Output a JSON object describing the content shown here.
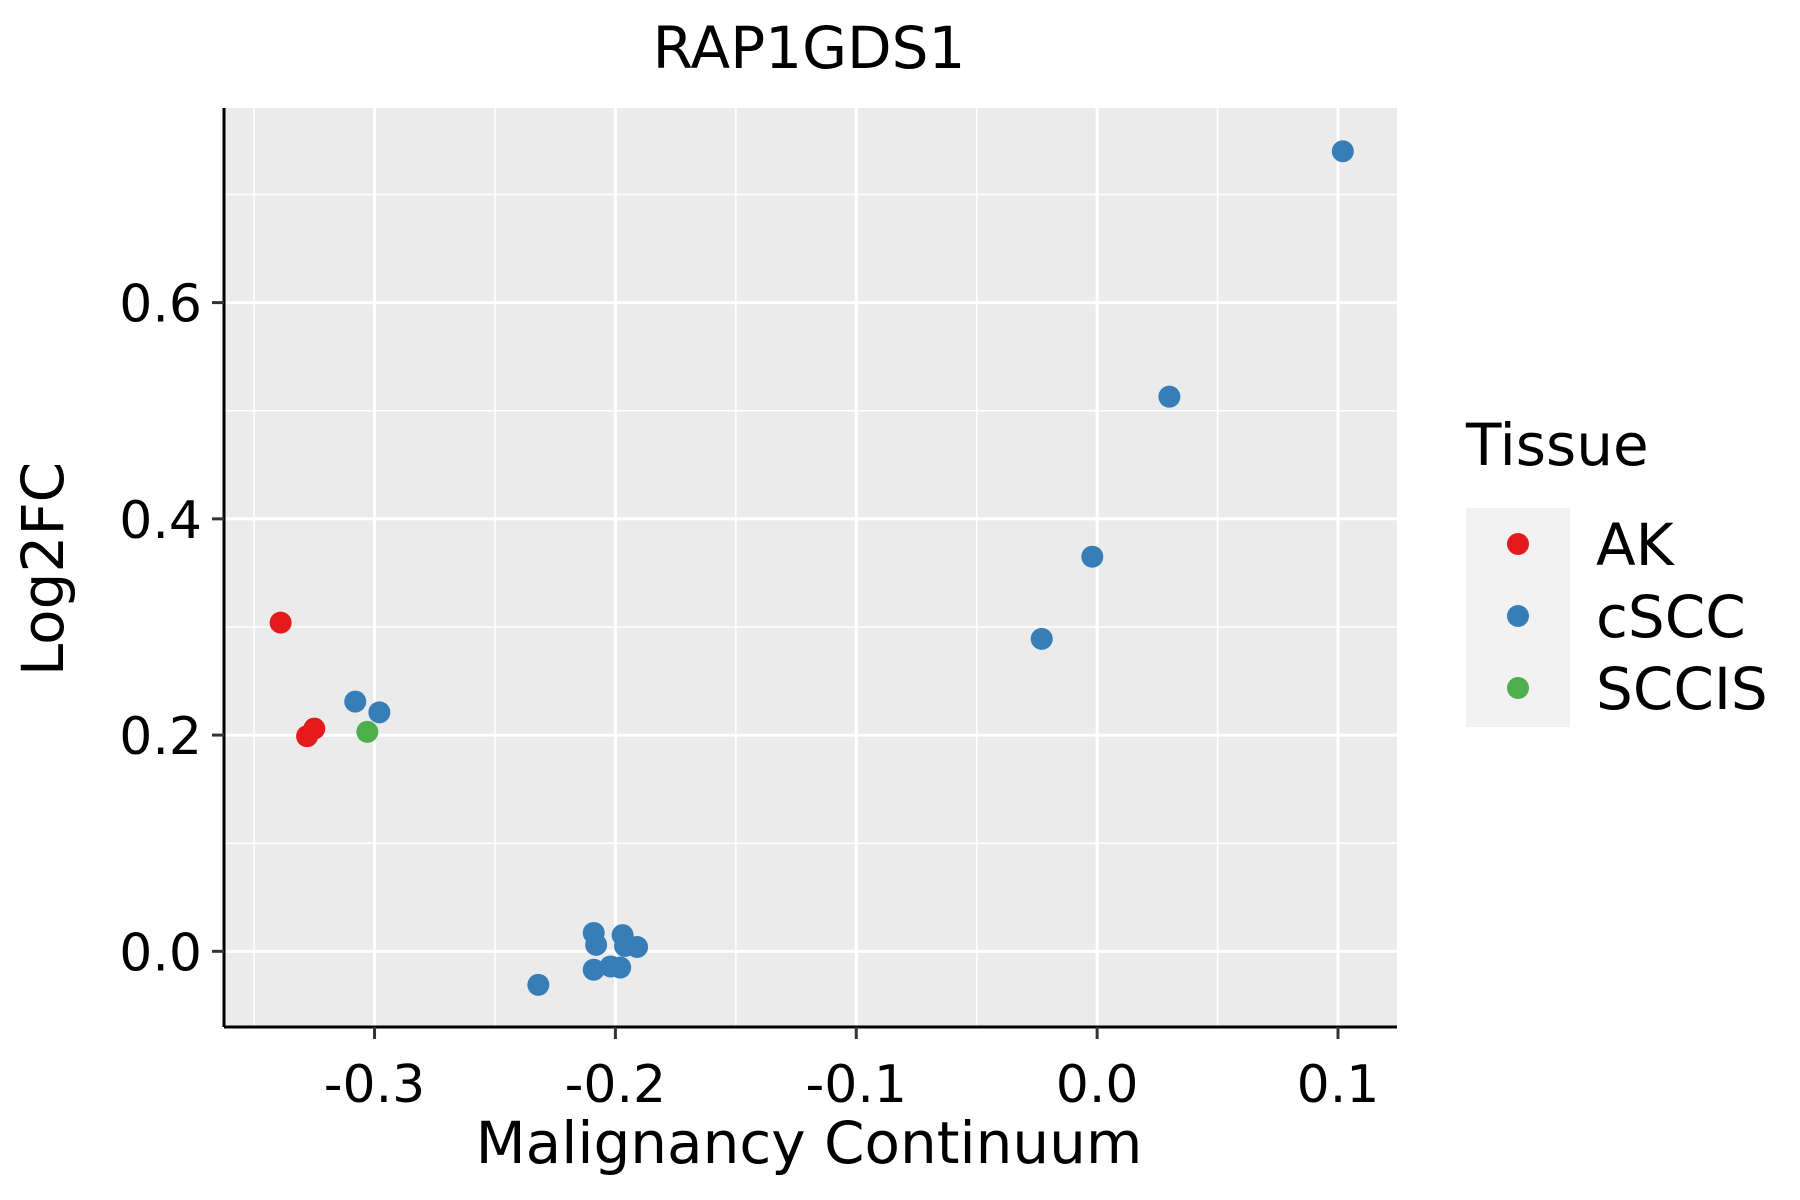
{
  "chart_data": {
    "type": "scatter",
    "title": "RAP1GDS1",
    "xlabel": "Malignancy Continuum",
    "ylabel": "Log2FC",
    "xlim": [
      -0.3625,
      0.1245
    ],
    "ylim": [
      -0.07,
      0.78
    ],
    "x_ticks": [
      -0.3,
      -0.2,
      -0.1,
      0.0,
      0.1
    ],
    "x_tick_labels": [
      "-0.3",
      "-0.2",
      "-0.1",
      "0.0",
      "0.1"
    ],
    "y_ticks": [
      0.0,
      0.2,
      0.4,
      0.6
    ],
    "y_tick_labels": [
      "0.0",
      "0.2",
      "0.4",
      "0.6"
    ],
    "grid": true,
    "legend": {
      "title": "Tissue",
      "position": "right",
      "entries": [
        {
          "label": "AK",
          "color": "#E41A1C"
        },
        {
          "label": "cSCC",
          "color": "#377EB8"
        },
        {
          "label": "SCCIS",
          "color": "#4DAF4A"
        }
      ]
    },
    "series": [
      {
        "name": "AK",
        "color": "#E41A1C",
        "points": [
          [
            -0.339,
            0.304
          ],
          [
            -0.328,
            0.199
          ],
          [
            -0.325,
            0.206
          ]
        ]
      },
      {
        "name": "cSCC",
        "color": "#377EB8",
        "points": [
          [
            0.102,
            0.74
          ],
          [
            0.03,
            0.513
          ],
          [
            -0.002,
            0.365
          ],
          [
            -0.023,
            0.289
          ],
          [
            -0.308,
            0.231
          ],
          [
            -0.298,
            0.221
          ],
          [
            -0.209,
            0.017
          ],
          [
            -0.208,
            0.006
          ],
          [
            -0.197,
            0.015
          ],
          [
            -0.191,
            0.004
          ],
          [
            -0.196,
            0.005
          ],
          [
            -0.202,
            -0.014
          ],
          [
            -0.198,
            -0.015
          ],
          [
            -0.209,
            -0.017
          ],
          [
            -0.232,
            -0.031
          ]
        ]
      },
      {
        "name": "SCCIS",
        "color": "#4DAF4A",
        "points": [
          [
            -0.303,
            0.203
          ]
        ]
      }
    ]
  }
}
